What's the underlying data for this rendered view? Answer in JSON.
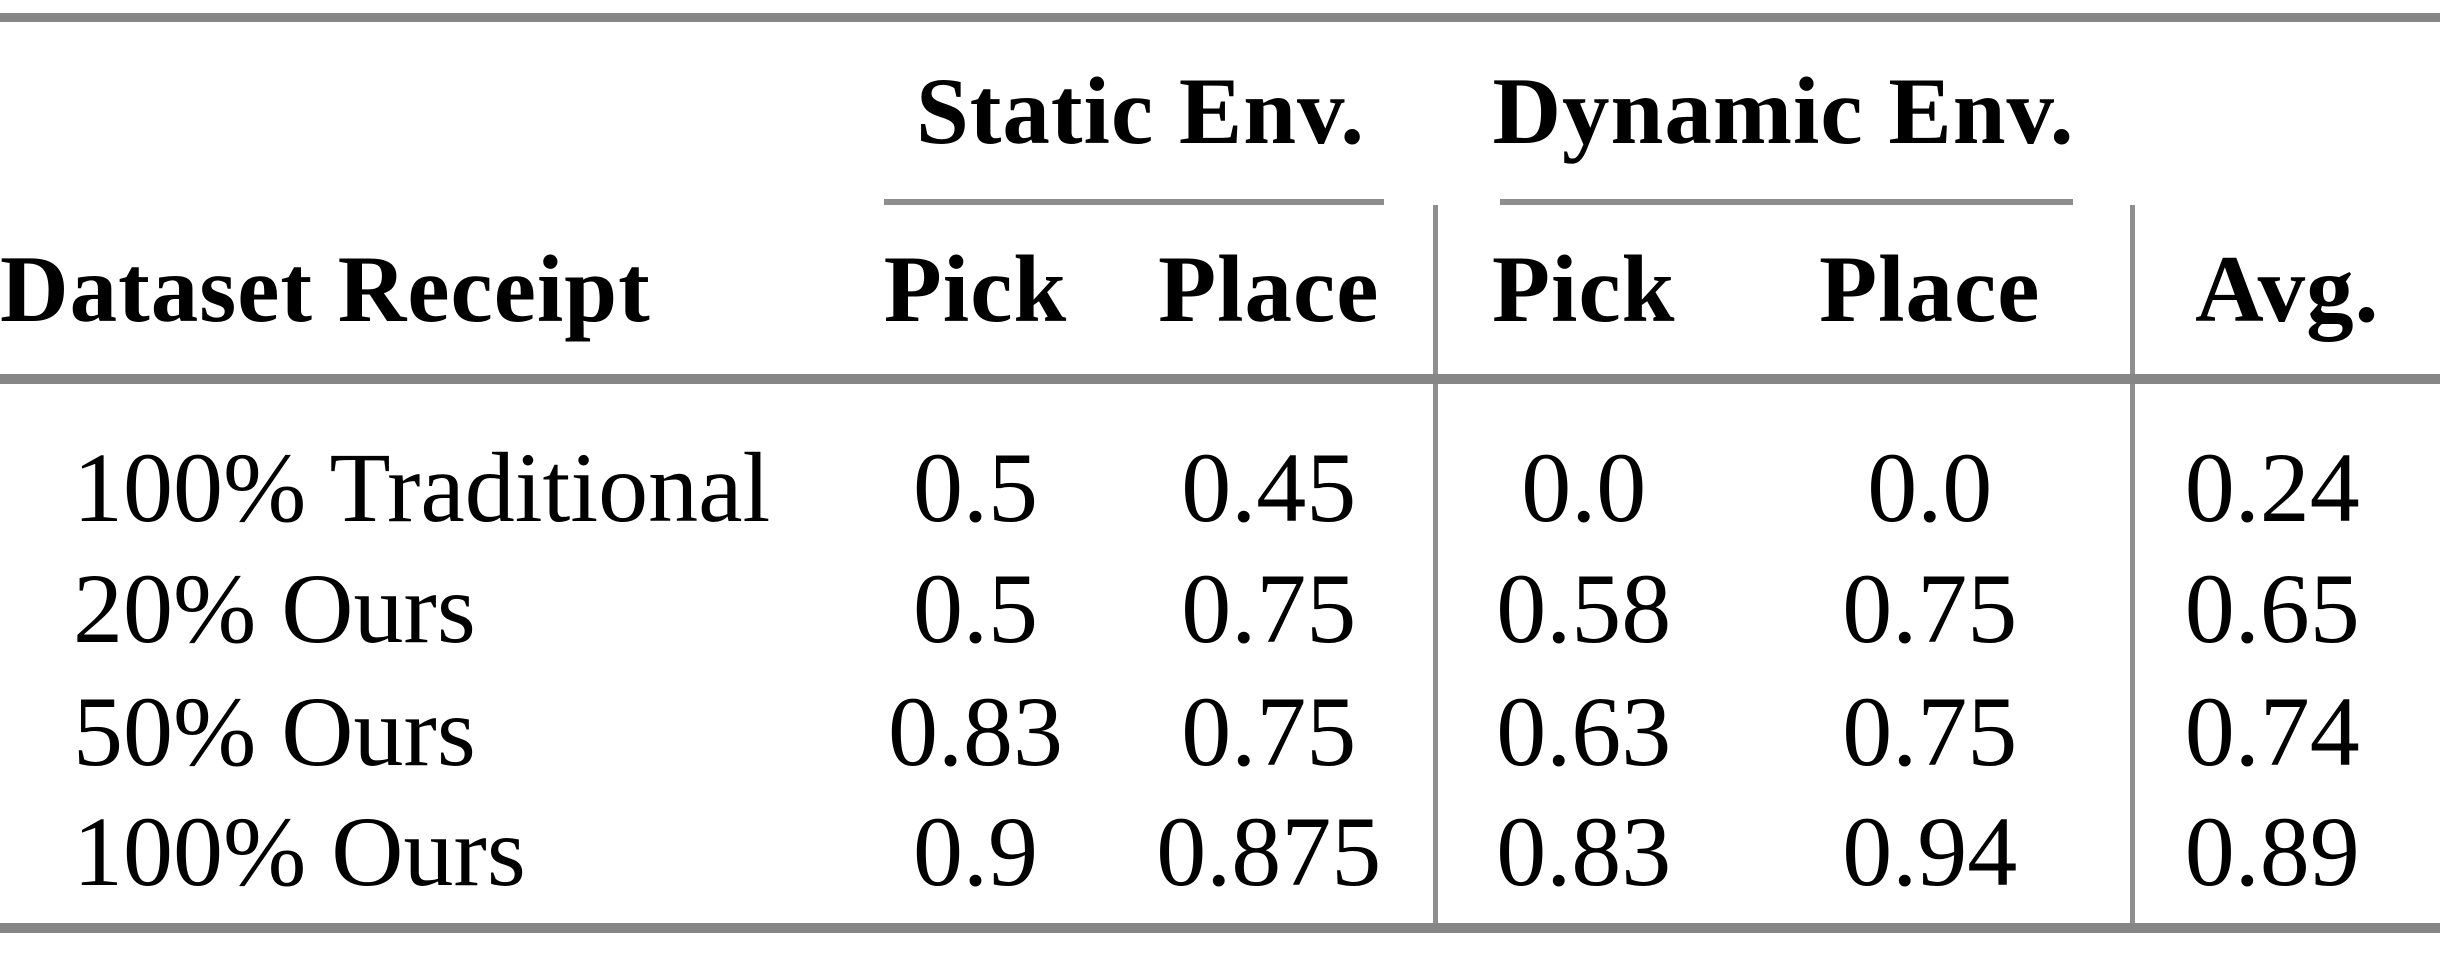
{
  "table": {
    "groups": [
      {
        "label": "Static Env."
      },
      {
        "label": "Dynamic Env."
      }
    ],
    "headers": [
      "Dataset Receipt",
      "Pick",
      "Place",
      "Pick",
      "Place",
      "Avg."
    ],
    "rows": [
      {
        "cells": [
          "100% Traditional",
          "0.5",
          "0.45",
          "0.0",
          "0.0",
          "0.24"
        ]
      },
      {
        "cells": [
          "20% Ours",
          "0.5",
          "0.75",
          "0.58",
          "0.75",
          "0.65"
        ]
      },
      {
        "cells": [
          "50% Ours",
          "0.83",
          "0.75",
          "0.63",
          "0.75",
          "0.74"
        ]
      },
      {
        "cells": [
          "100% Ours",
          "0.9",
          "0.875",
          "0.83",
          "0.94",
          "0.89"
        ]
      }
    ],
    "colors": {
      "thick_rule": "#868686",
      "thin_rule": "#8d8d8d",
      "vertical_rule": "#8f8f8f",
      "text": "#000000",
      "background": "#ffffff"
    }
  },
  "chart_data": {
    "type": "table",
    "title": "",
    "column_groups": [
      {
        "label": "Static Env.",
        "columns": [
          "Pick",
          "Place"
        ]
      },
      {
        "label": "Dynamic Env.",
        "columns": [
          "Pick",
          "Place"
        ]
      }
    ],
    "columns": [
      "Dataset Receipt",
      "Static Pick",
      "Static Place",
      "Dynamic Pick",
      "Dynamic Place",
      "Avg."
    ],
    "rows": [
      [
        "100% Traditional",
        0.5,
        0.45,
        0.0,
        0.0,
        0.24
      ],
      [
        "20% Ours",
        0.5,
        0.75,
        0.58,
        0.75,
        0.65
      ],
      [
        "50% Ours",
        0.83,
        0.75,
        0.63,
        0.75,
        0.74
      ],
      [
        "100% Ours",
        0.9,
        0.875,
        0.83,
        0.94,
        0.89
      ]
    ]
  }
}
